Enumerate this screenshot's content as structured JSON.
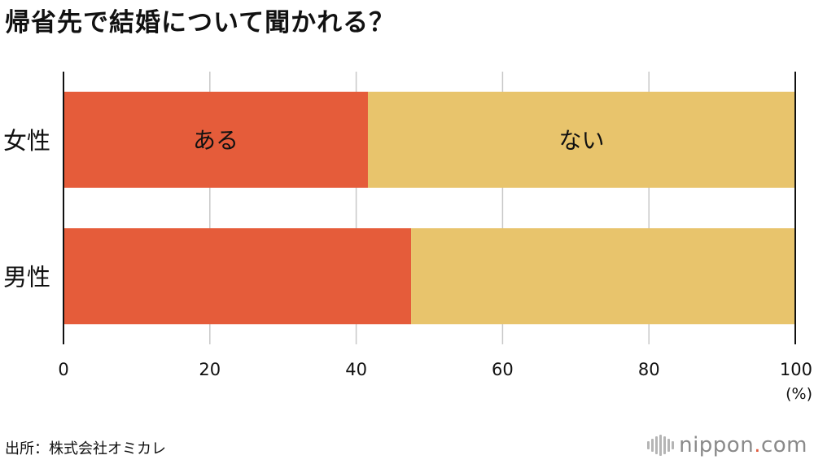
{
  "title": "帰省先で結婚について聞かれる？",
  "source": "出所：株式会社オミカレ",
  "logo": {
    "name": "nippon",
    "dot": ".",
    "tld": "com"
  },
  "colors": {
    "series_a": "#E55C3A",
    "series_b": "#E8C46C",
    "grid": "#C8C8C8",
    "axis": "#111111"
  },
  "chart_data": {
    "type": "bar",
    "orientation": "horizontal",
    "stacked": true,
    "categories": [
      "女性",
      "男性"
    ],
    "series": [
      {
        "name": "ある",
        "values": [
          41.6,
          47.5
        ],
        "color": "#E55C3A"
      },
      {
        "name": "ない",
        "values": [
          58.4,
          52.5
        ],
        "color": "#E8C46C"
      }
    ],
    "xlim": [
      0,
      100
    ],
    "x_ticks": [
      "0",
      "20",
      "40",
      "60",
      "80",
      "100"
    ],
    "x_unit": "(%)",
    "grid": true,
    "legend": "inline labels on first bar"
  }
}
